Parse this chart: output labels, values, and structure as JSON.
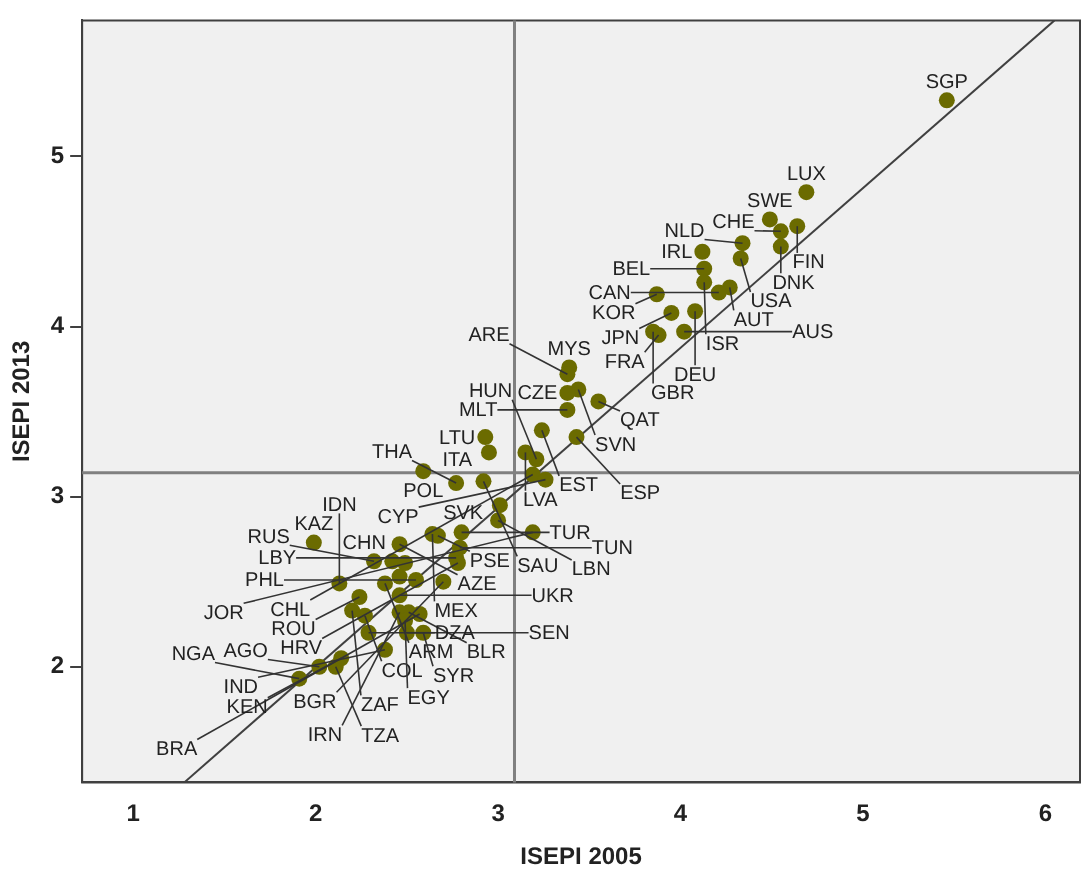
{
  "chart_data": {
    "type": "scatter",
    "xlabel": "ISEPI 2005",
    "ylabel": "ISEPI 2013",
    "xlim": [
      0.72,
      6.19
    ],
    "ylim": [
      1.32,
      5.8
    ],
    "xticks": [
      1,
      2,
      3,
      4,
      5,
      6
    ],
    "yticks": [
      2,
      3,
      4,
      5
    ],
    "grid": false,
    "legend": false,
    "marker": "circle",
    "ref_lines": [
      {
        "axis": "x",
        "value": 3.09,
        "color": "#808080"
      },
      {
        "axis": "y",
        "value": 3.14,
        "color": "#808080"
      }
    ],
    "series": [
      {
        "type": "scatter",
        "color": "#6b6b00",
        "x": [
          5.46,
          4.69,
          4.49,
          4.64,
          4.55,
          4.55,
          4.34,
          4.12,
          4.33,
          4.13,
          4.13,
          4.27,
          4.21,
          3.87,
          4.08,
          3.95,
          3.85,
          3.88,
          4.02,
          3.39,
          3.38,
          3.44,
          3.38,
          3.55,
          3.38,
          3.24,
          3.43,
          2.93,
          2.95,
          3.15,
          3.21,
          2.59,
          3.19,
          3.26,
          2.77,
          2.92,
          2.42,
          2.64,
          2.67,
          2.8,
          3.01,
          3.0,
          3.19,
          1.99,
          2.46,
          2.32,
          2.79,
          2.77,
          2.78,
          2.13,
          2.38,
          2.55,
          2.7,
          2.24,
          2.27,
          2.2,
          2.46,
          2.51,
          2.57,
          2.46,
          2.29,
          2.5,
          2.49,
          2.59,
          2.38,
          2.02,
          2.11,
          2.14,
          1.91,
          2.49,
          2.46
        ],
        "values": [
          5.33,
          4.79,
          4.63,
          4.59,
          4.56,
          4.47,
          4.49,
          4.44,
          4.4,
          4.34,
          4.26,
          4.23,
          4.2,
          4.19,
          4.09,
          4.08,
          3.97,
          3.95,
          3.97,
          3.76,
          3.72,
          3.63,
          3.61,
          3.56,
          3.51,
          3.39,
          3.35,
          3.35,
          3.26,
          3.26,
          3.22,
          3.15,
          3.13,
          3.1,
          3.08,
          3.09,
          2.62,
          2.78,
          2.77,
          2.79,
          2.95,
          2.86,
          2.79,
          2.73,
          2.72,
          2.62,
          2.7,
          2.64,
          2.61,
          2.49,
          2.49,
          2.51,
          2.5,
          2.41,
          2.3,
          2.33,
          2.32,
          2.32,
          2.31,
          2.42,
          2.2,
          2.2,
          2.27,
          2.2,
          2.1,
          2.0,
          2.0,
          2.05,
          1.93,
          2.61,
          2.53
        ],
        "value_labels": [
          "SGP",
          "LUX",
          "SWE",
          "FIN",
          "CHE",
          "DNK",
          "NLD",
          "IRL",
          "USA",
          "BEL",
          "ISR",
          "AUT",
          "CAN",
          "KOR",
          "DEU",
          "JPN",
          "GBR",
          "FRA",
          "AUS",
          "MYS",
          "ARE",
          "SVN",
          "CZE",
          "QAT",
          "MLT",
          "EST",
          "ESP",
          "LTU",
          "ITA",
          "LVA",
          "HUN",
          "POL",
          "CHL",
          "CYP",
          "THA",
          "SAU",
          "CHN",
          "MEX",
          "PSE",
          "TUR",
          "SVK",
          "LBN",
          "JOR",
          "KAZ",
          "AZE",
          "RUS",
          "TUN",
          "LBY",
          "HRV",
          "IDN",
          "ARM",
          "PHL",
          "BGR",
          "ROU",
          "COL",
          "ZAF",
          "IRN",
          "BLR",
          "BRA",
          "UKR",
          "SEN",
          "DZA",
          "EGY",
          "SYR",
          "IND",
          "AGO",
          "TZA",
          "KEN",
          "NGA",
          null,
          null
        ]
      },
      {
        "type": "line",
        "color": "#404040",
        "line_style": "solid",
        "marker": "none",
        "x": [
          1.28,
          6.05
        ],
        "values": [
          1.32,
          5.8
        ]
      }
    ]
  }
}
